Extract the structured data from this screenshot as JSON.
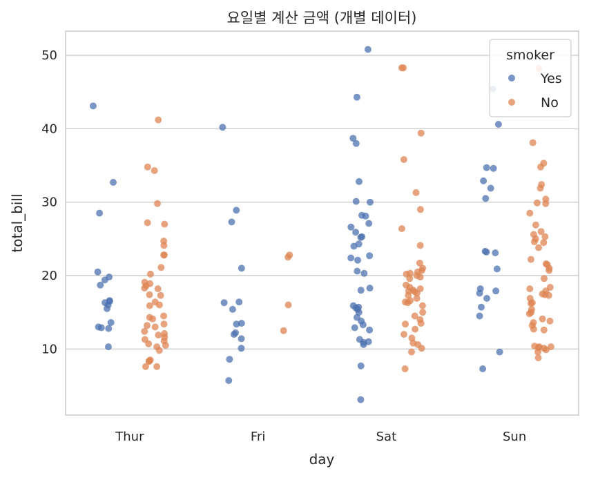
{
  "chart_data": {
    "type": "scatter",
    "subtype": "strip",
    "title": "요일별 계산 금액 (개별 데이터)",
    "xlabel": "day",
    "ylabel": "total_bill",
    "categories": [
      "Thur",
      "Fri",
      "Sat",
      "Sun"
    ],
    "ylim": [
      1,
      53.3
    ],
    "yticks": [
      10,
      20,
      30,
      40,
      50
    ],
    "grid": true,
    "legend": {
      "title": "smoker",
      "placement": "top-right"
    },
    "colors": {
      "Yes": "#4c72b0",
      "No": "#dd8452"
    },
    "series": [
      {
        "name": "Yes",
        "color": "#4c72b0",
        "values": {
          "Thur": [
            43.1,
            32.7,
            28.5,
            20.5,
            19.8,
            19.4,
            18.7,
            16.6,
            16.5,
            16.3,
            16.0,
            15.5,
            13.6,
            13.0,
            12.9,
            12.8,
            10.3
          ],
          "Fri": [
            40.2,
            28.9,
            27.3,
            21.0,
            16.4,
            16.3,
            15.4,
            13.5,
            13.4,
            12.2,
            12.0,
            11.4,
            10.1,
            8.6,
            5.7
          ],
          "Sat": [
            50.8,
            44.3,
            38.7,
            38.0,
            32.8,
            30.1,
            30.0,
            28.2,
            28.1,
            27.1,
            26.6,
            25.9,
            25.3,
            25.2,
            24.3,
            24.0,
            22.7,
            22.4,
            22.1,
            20.6,
            20.3,
            18.3,
            18.0,
            15.9,
            15.7,
            15.6,
            15.4,
            15.0,
            14.3,
            13.8,
            13.3,
            12.9,
            12.6,
            11.3,
            11.0,
            10.9,
            10.6,
            7.7,
            3.1
          ],
          "Sun": [
            45.4,
            40.6,
            34.7,
            34.6,
            32.9,
            31.9,
            30.5,
            23.3,
            23.2,
            23.1,
            20.9,
            18.2,
            17.9,
            17.6,
            16.9,
            15.7,
            14.5,
            9.6,
            7.3
          ]
        }
      },
      {
        "name": "No",
        "color": "#dd8452",
        "values": {
          "Thur": [
            41.2,
            34.8,
            34.3,
            29.8,
            27.2,
            27.0,
            24.7,
            24.1,
            22.8,
            22.8,
            21.1,
            20.2,
            19.1,
            18.9,
            18.6,
            18.3,
            18.2,
            17.4,
            17.3,
            16.4,
            16.0,
            15.9,
            14.5,
            14.3,
            14.1,
            13.4,
            13.2,
            13.0,
            12.4,
            12.1,
            11.9,
            11.6,
            11.3,
            11.1,
            10.7,
            10.5,
            10.3,
            9.8,
            8.5,
            8.4,
            8.3,
            7.6,
            7.6
          ],
          "Fri": [
            22.8,
            22.5,
            16.0,
            12.5
          ],
          "Sat": [
            48.3,
            48.3,
            39.4,
            35.8,
            31.3,
            29.0,
            26.4,
            24.1,
            21.7,
            21.0,
            20.7,
            20.5,
            20.3,
            20.2,
            20.0,
            19.8,
            19.6,
            18.7,
            18.4,
            18.2,
            18.0,
            17.9,
            17.8,
            17.6,
            17.3,
            16.9,
            16.6,
            16.4,
            16.3,
            15.9,
            15.0,
            14.5,
            14.0,
            13.5,
            13.4,
            12.7,
            12.0,
            11.5,
            10.8,
            10.6,
            10.1,
            9.6,
            7.3
          ],
          "Sun": [
            48.2,
            38.1,
            35.3,
            34.8,
            32.4,
            31.9,
            30.4,
            29.9,
            29.8,
            28.5,
            26.9,
            26.0,
            25.6,
            25.3,
            25.0,
            24.6,
            24.5,
            23.8,
            22.2,
            21.6,
            21.5,
            21.0,
            20.7,
            19.6,
            18.4,
            18.2,
            17.9,
            17.5,
            17.4,
            17.3,
            16.9,
            16.3,
            16.2,
            15.4,
            15.0,
            14.8,
            14.1,
            13.8,
            13.6,
            13.2,
            12.7,
            12.6,
            10.4,
            10.3,
            10.3,
            10.2,
            10.1,
            9.9,
            9.6,
            8.8
          ]
        }
      }
    ]
  }
}
